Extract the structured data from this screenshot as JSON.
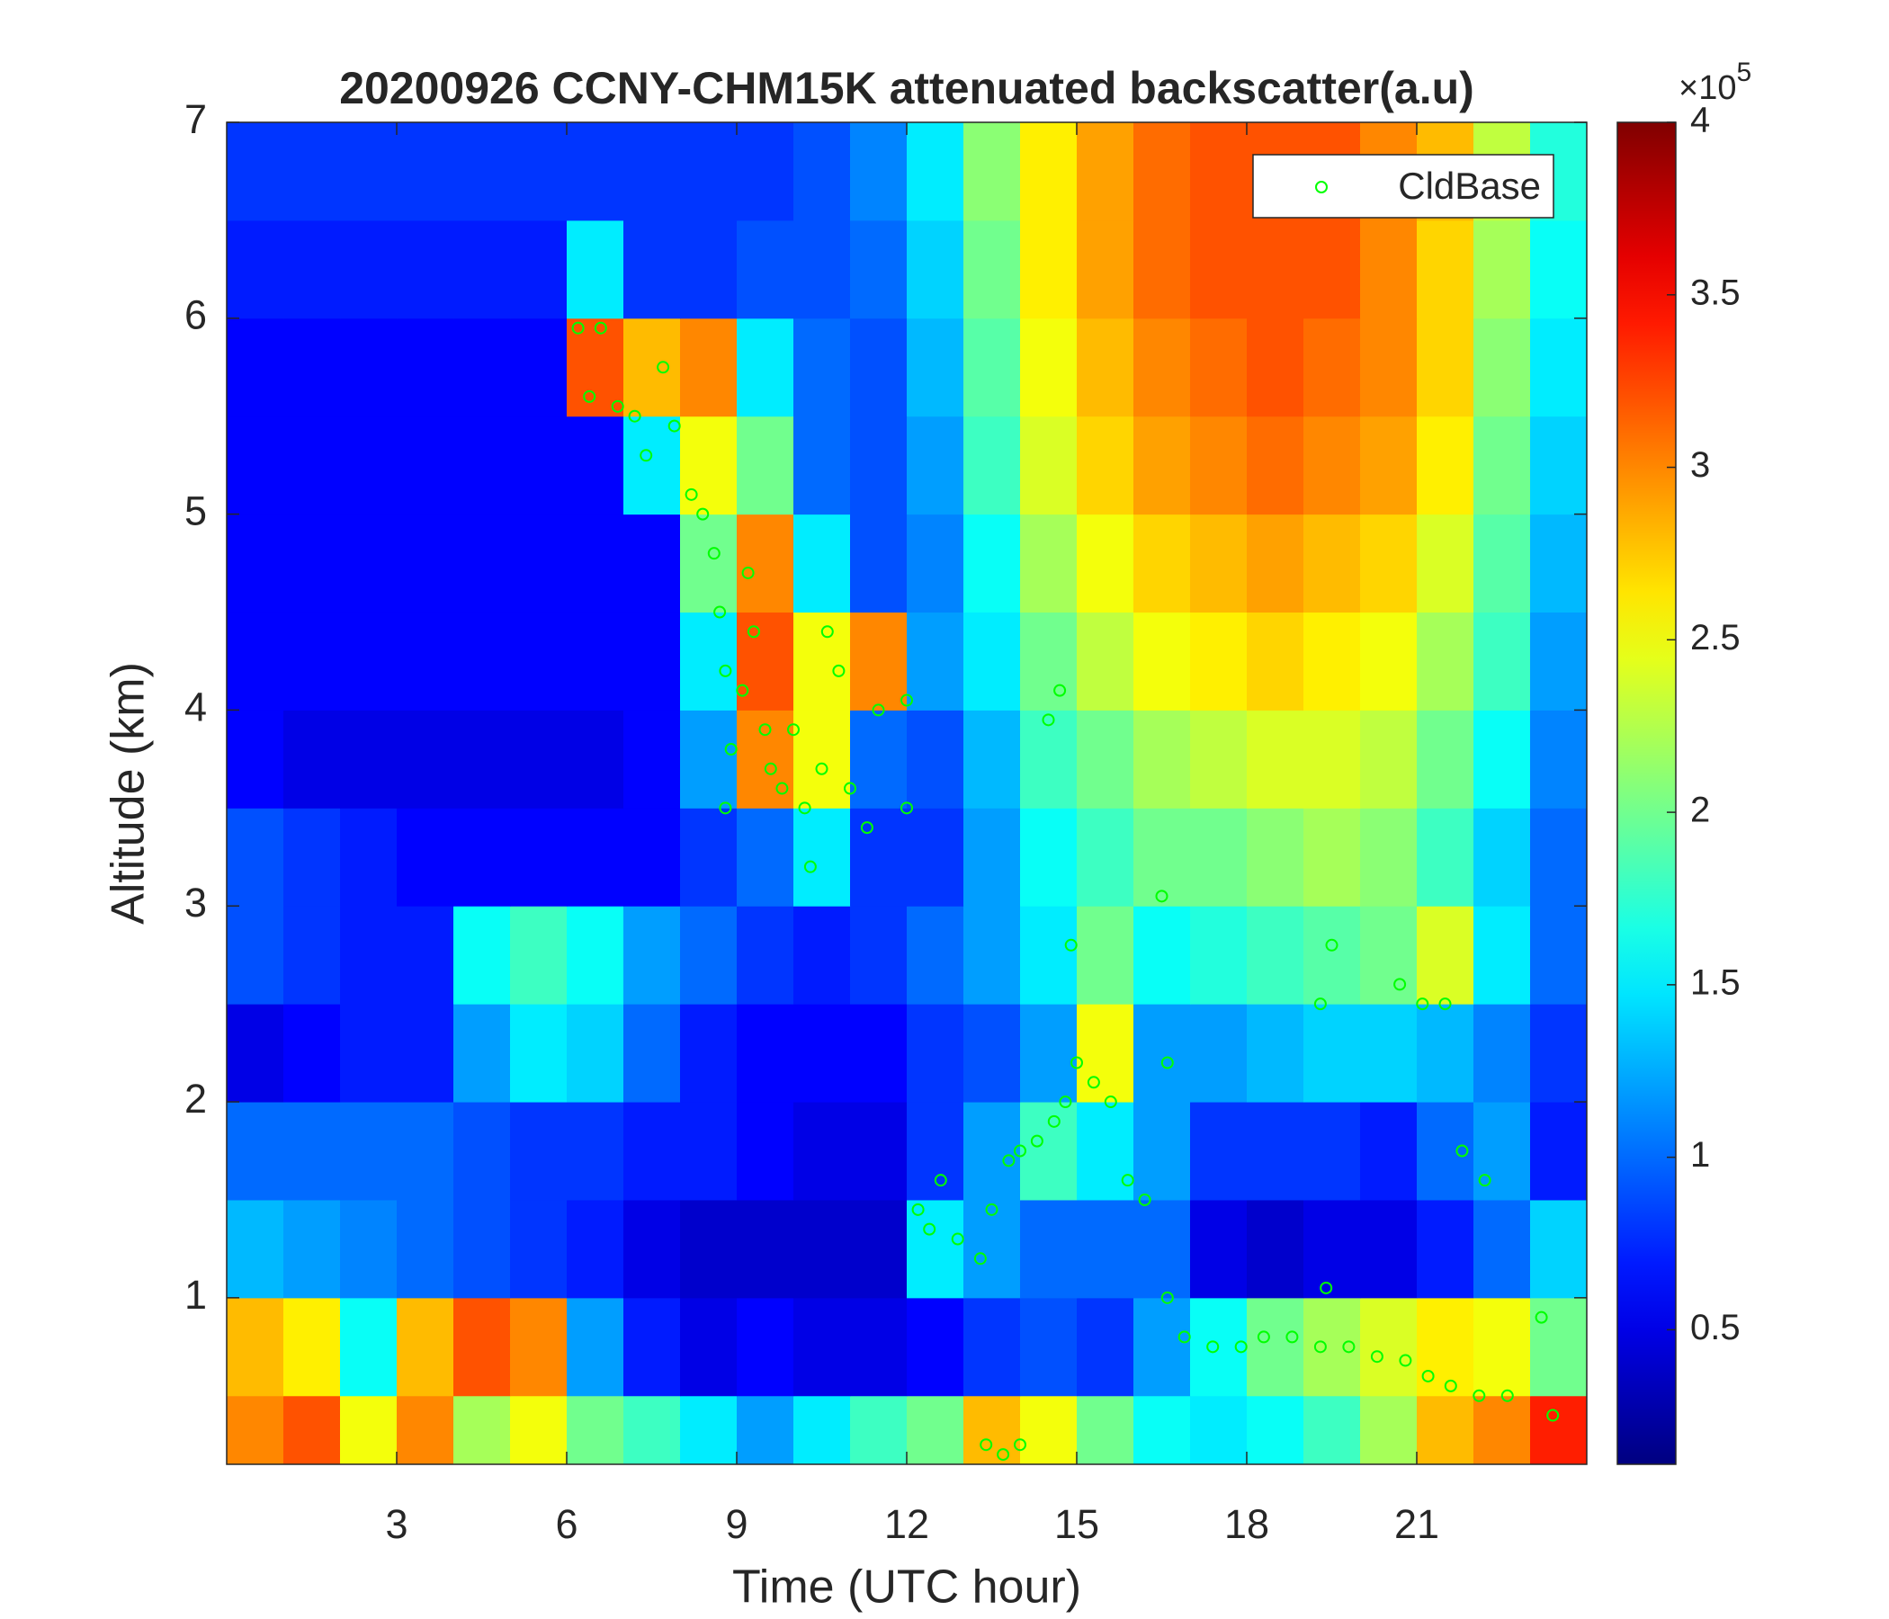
{
  "chart_data": {
    "type": "heatmap",
    "title": "20200926 CCNY-CHM15K attenuated backscatter(a.u)",
    "x_label": "Time (UTC hour)",
    "y_label": "Altitude (km)",
    "x_edges": [
      0,
      1,
      2,
      3,
      4,
      5,
      6,
      7,
      8,
      9,
      10,
      11,
      12,
      13,
      14,
      15,
      16,
      17,
      18,
      19,
      20,
      21,
      22,
      23,
      24
    ],
    "y_edges": [
      0.15,
      0.5,
      1,
      1.5,
      2,
      2.5,
      3,
      3.5,
      4,
      4.5,
      5,
      5.5,
      6,
      6.5,
      7
    ],
    "z": [
      [
        3.0,
        3.2,
        2.5,
        3.0,
        2.2,
        2.5,
        2.0,
        1.8,
        1.5,
        1.2,
        1.5,
        1.8,
        2.0,
        2.8,
        2.5,
        2.0,
        1.6,
        1.5,
        1.6,
        1.8,
        2.2,
        2.8,
        3.0,
        3.4
      ],
      [
        2.8,
        2.6,
        1.6,
        2.8,
        3.2,
        3.0,
        1.2,
        0.7,
        0.5,
        0.6,
        0.5,
        0.5,
        0.6,
        0.8,
        0.9,
        0.8,
        1.2,
        1.6,
        2.0,
        2.2,
        2.4,
        2.6,
        2.5,
        2.0
      ],
      [
        1.3,
        1.2,
        1.1,
        1.0,
        0.9,
        0.8,
        0.7,
        0.5,
        0.4,
        0.4,
        0.4,
        0.4,
        1.5,
        1.2,
        1.0,
        1.0,
        1.0,
        0.5,
        0.4,
        0.5,
        0.5,
        0.7,
        1.0,
        1.4
      ],
      [
        1.0,
        1.0,
        1.0,
        1.0,
        0.9,
        0.8,
        0.8,
        0.7,
        0.7,
        0.6,
        0.5,
        0.5,
        0.8,
        1.2,
        1.8,
        1.5,
        1.2,
        0.8,
        0.8,
        0.8,
        0.7,
        1.0,
        1.2,
        0.7
      ],
      [
        0.5,
        0.6,
        0.7,
        0.7,
        1.2,
        1.5,
        1.4,
        1.0,
        0.7,
        0.6,
        0.6,
        0.6,
        0.8,
        0.9,
        1.2,
        2.5,
        1.2,
        1.2,
        1.3,
        1.4,
        1.4,
        1.3,
        1.1,
        0.8
      ],
      [
        0.9,
        0.8,
        0.7,
        0.7,
        1.6,
        1.8,
        1.6,
        1.2,
        1.0,
        0.8,
        0.7,
        0.8,
        1.0,
        1.2,
        1.5,
        2.0,
        1.6,
        1.7,
        1.8,
        1.9,
        2.0,
        2.4,
        1.5,
        1.0
      ],
      [
        0.9,
        0.8,
        0.7,
        0.6,
        0.6,
        0.6,
        0.6,
        0.6,
        0.8,
        1.0,
        1.5,
        0.8,
        0.8,
        1.2,
        1.6,
        1.8,
        2.0,
        2.0,
        2.1,
        2.2,
        2.1,
        1.8,
        1.4,
        1.0
      ],
      [
        0.6,
        0.5,
        0.5,
        0.5,
        0.5,
        0.5,
        0.5,
        0.6,
        1.2,
        3.0,
        2.5,
        1.0,
        0.9,
        1.3,
        1.8,
        2.0,
        2.2,
        2.3,
        2.4,
        2.4,
        2.3,
        2.0,
        1.6,
        1.1
      ],
      [
        0.6,
        0.6,
        0.6,
        0.6,
        0.6,
        0.6,
        0.6,
        0.6,
        1.5,
        3.2,
        2.5,
        3.0,
        1.2,
        1.5,
        2.0,
        2.3,
        2.5,
        2.6,
        2.7,
        2.6,
        2.5,
        2.2,
        1.8,
        1.2
      ],
      [
        0.6,
        0.6,
        0.6,
        0.6,
        0.6,
        0.6,
        0.6,
        0.6,
        2.0,
        3.0,
        1.5,
        0.9,
        1.1,
        1.6,
        2.2,
        2.5,
        2.7,
        2.8,
        2.9,
        2.8,
        2.7,
        2.4,
        1.9,
        1.3
      ],
      [
        0.6,
        0.6,
        0.6,
        0.6,
        0.6,
        0.6,
        0.6,
        1.5,
        2.5,
        2.0,
        1.0,
        0.9,
        1.2,
        1.8,
        2.4,
        2.7,
        2.9,
        3.0,
        3.1,
        3.0,
        2.9,
        2.6,
        2.0,
        1.4
      ],
      [
        0.6,
        0.6,
        0.6,
        0.6,
        0.6,
        0.6,
        3.2,
        2.8,
        3.0,
        1.5,
        1.0,
        0.9,
        1.3,
        1.9,
        2.5,
        2.8,
        3.0,
        3.1,
        3.2,
        3.1,
        3.0,
        2.7,
        2.1,
        1.5
      ],
      [
        0.7,
        0.7,
        0.7,
        0.7,
        0.7,
        0.7,
        1.5,
        0.8,
        0.8,
        0.9,
        0.9,
        1.0,
        1.4,
        2.0,
        2.6,
        2.9,
        3.1,
        3.2,
        3.2,
        3.2,
        3.0,
        2.7,
        2.2,
        1.6
      ],
      [
        0.8,
        0.8,
        0.8,
        0.8,
        0.8,
        0.8,
        0.8,
        0.8,
        0.8,
        0.8,
        0.9,
        1.1,
        1.5,
        2.1,
        2.6,
        2.9,
        3.1,
        3.2,
        3.2,
        3.2,
        3.0,
        2.8,
        2.3,
        1.7
      ]
    ],
    "clim": [
      0.11,
      4
    ],
    "colormap": "jet",
    "colorbar_ticks": [
      0.5,
      1,
      1.5,
      2,
      2.5,
      3,
      3.5,
      4
    ],
    "colorbar_multiplier": "×10",
    "colorbar_exponent": "5",
    "xlim": [
      0,
      24
    ],
    "ylim": [
      0.15,
      7
    ],
    "xticks": [
      3,
      6,
      9,
      12,
      15,
      18,
      21
    ],
    "yticks": [
      1,
      2,
      3,
      4,
      5,
      6,
      7
    ],
    "legend": "upper right",
    "series": [
      {
        "name": "CldBase",
        "type": "scatter",
        "color": "#00ff00",
        "x": [
          6.2,
          6.4,
          6.6,
          6.9,
          7.2,
          7.4,
          7.7,
          7.9,
          8.2,
          8.4,
          8.6,
          8.7,
          8.8,
          8.8,
          8.9,
          9.1,
          9.2,
          9.3,
          9.5,
          9.6,
          9.8,
          10.0,
          10.2,
          10.3,
          10.5,
          10.6,
          10.8,
          11.0,
          11.3,
          11.5,
          12.0,
          12.0,
          12.2,
          12.4,
          12.6,
          12.9,
          13.3,
          13.5,
          13.8,
          14.0,
          14.3,
          14.6,
          14.8,
          15.0,
          15.3,
          15.6,
          15.9,
          16.2,
          16.6,
          16.9,
          17.4,
          17.9,
          18.3,
          18.8,
          19.3,
          19.8,
          20.3,
          20.8,
          21.2,
          21.6,
          22.1,
          22.6,
          23.2,
          23.4,
          13.4,
          13.7,
          14.0,
          14.5,
          14.7,
          14.9,
          19.3,
          19.5,
          20.7,
          21.1,
          21.5,
          22.2,
          21.8,
          16.5,
          19.4,
          16.6
        ],
        "y": [
          5.95,
          5.6,
          5.95,
          5.55,
          5.5,
          5.3,
          5.75,
          5.45,
          5.1,
          5.0,
          4.8,
          4.5,
          4.2,
          3.5,
          3.8,
          4.1,
          4.7,
          4.4,
          3.9,
          3.7,
          3.6,
          3.9,
          3.5,
          3.2,
          3.7,
          4.4,
          4.2,
          3.6,
          3.4,
          4.0,
          4.05,
          3.5,
          1.45,
          1.35,
          1.6,
          1.3,
          1.2,
          1.45,
          1.7,
          1.75,
          1.8,
          1.9,
          2.0,
          2.2,
          2.1,
          2.0,
          1.6,
          1.5,
          1.0,
          0.8,
          0.75,
          0.75,
          0.8,
          0.8,
          0.75,
          0.75,
          0.7,
          0.68,
          0.6,
          0.55,
          0.5,
          0.5,
          0.9,
          0.4,
          0.25,
          0.2,
          0.25,
          3.95,
          4.1,
          2.8,
          2.5,
          2.8,
          2.6,
          2.5,
          2.5,
          1.6,
          1.75,
          3.05,
          1.05,
          2.2
        ]
      }
    ]
  }
}
